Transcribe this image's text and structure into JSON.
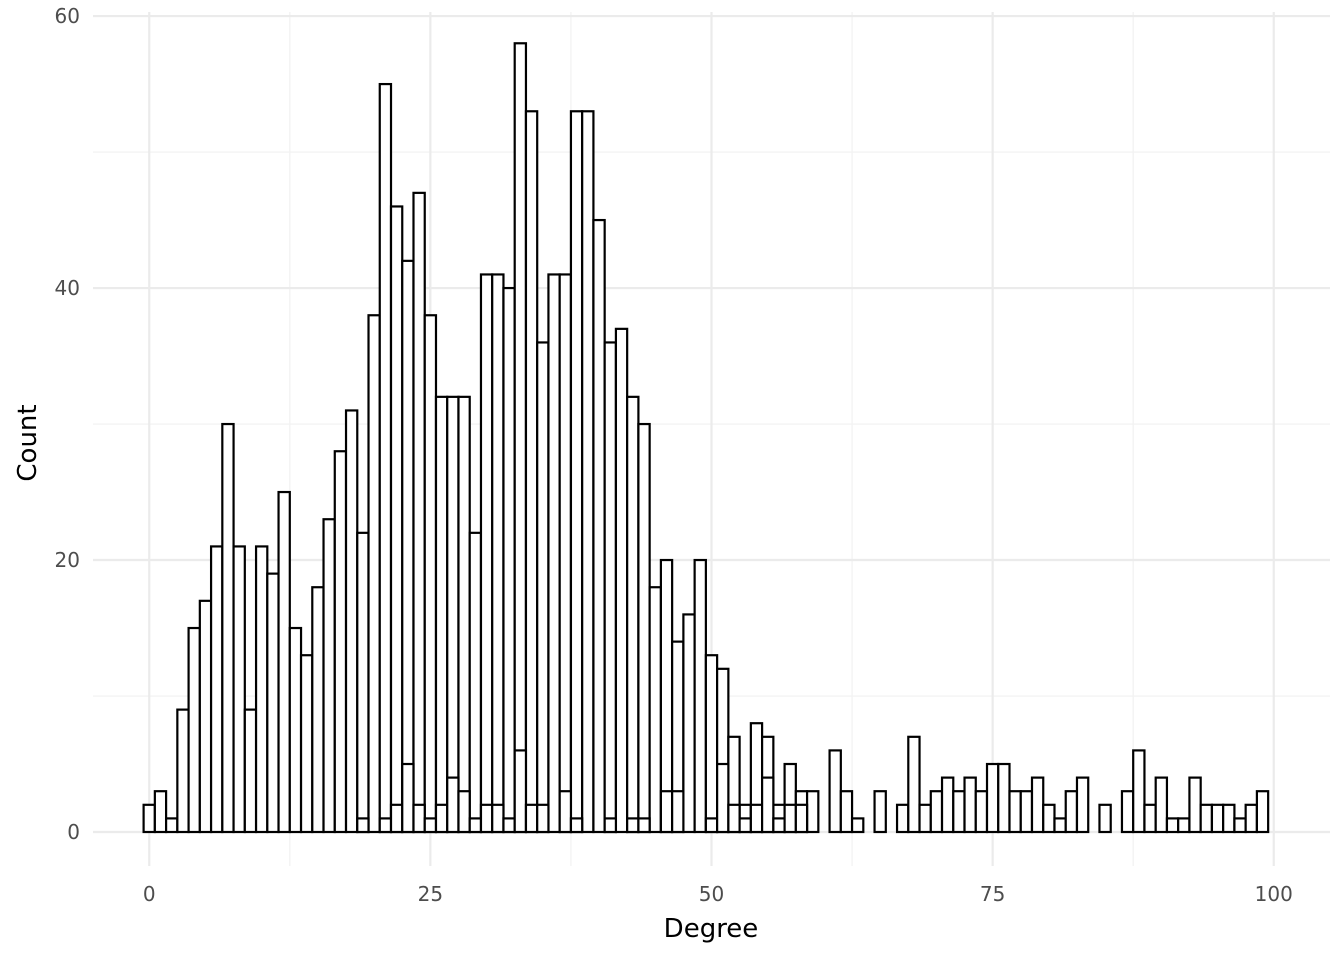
{
  "chart_data": {
    "type": "bar",
    "title": "",
    "xlabel": "Degree",
    "ylabel": "Count",
    "xlim": [
      -5,
      105
    ],
    "ylim": [
      -2.5,
      60.3
    ],
    "x_ticks": [
      0,
      25,
      50,
      75,
      100
    ],
    "x_tick_labels": [
      "0",
      "25",
      "50",
      "75",
      "100"
    ],
    "y_ticks": [
      0,
      20,
      40,
      60
    ],
    "y_tick_labels": [
      "0",
      "20",
      "40",
      "60"
    ],
    "grid": true,
    "bin_width": 1,
    "series": [
      {
        "values": [
          [
            0,
            2
          ],
          [
            1,
            3
          ],
          [
            2,
            1
          ],
          [
            3,
            9
          ],
          [
            4,
            15
          ],
          [
            5,
            17
          ],
          [
            6,
            21
          ],
          [
            7,
            30
          ],
          [
            8,
            21
          ],
          [
            9,
            9
          ],
          [
            10,
            21
          ],
          [
            11,
            19
          ],
          [
            12,
            25
          ],
          [
            13,
            15
          ],
          [
            14,
            13
          ],
          [
            15,
            18
          ],
          [
            16,
            23
          ],
          [
            17,
            28
          ],
          [
            18,
            31
          ],
          [
            19,
            22
          ],
          [
            20,
            38
          ],
          [
            21,
            55
          ],
          [
            22,
            46
          ],
          [
            23,
            42
          ],
          [
            24,
            47
          ],
          [
            25,
            38
          ],
          [
            26,
            32
          ],
          [
            27,
            32
          ],
          [
            28,
            32
          ],
          [
            29,
            22
          ],
          [
            30,
            41
          ],
          [
            31,
            41
          ],
          [
            32,
            40
          ],
          [
            33,
            58
          ],
          [
            34,
            53
          ],
          [
            35,
            36
          ],
          [
            36,
            41
          ],
          [
            37,
            41
          ],
          [
            38,
            53
          ],
          [
            39,
            53
          ],
          [
            40,
            45
          ],
          [
            41,
            36
          ],
          [
            42,
            37
          ],
          [
            43,
            32
          ],
          [
            44,
            30
          ],
          [
            45,
            18
          ],
          [
            46,
            20
          ],
          [
            47,
            14
          ],
          [
            48,
            16
          ],
          [
            49,
            20
          ],
          [
            50,
            13
          ],
          [
            51,
            12
          ],
          [
            52,
            7
          ],
          [
            53,
            2
          ],
          [
            54,
            8
          ],
          [
            55,
            7
          ],
          [
            56,
            2
          ],
          [
            57,
            5
          ],
          [
            58,
            3
          ],
          [
            59,
            3
          ],
          [
            61,
            6
          ],
          [
            62,
            3
          ],
          [
            63,
            1
          ],
          [
            65,
            3
          ],
          [
            67,
            2
          ],
          [
            68,
            7
          ],
          [
            69,
            2
          ],
          [
            70,
            3
          ],
          [
            71,
            4
          ],
          [
            72,
            3
          ],
          [
            73,
            4
          ],
          [
            74,
            3
          ],
          [
            75,
            5
          ],
          [
            76,
            5
          ],
          [
            77,
            3
          ],
          [
            78,
            3
          ],
          [
            79,
            4
          ],
          [
            80,
            2
          ],
          [
            81,
            1
          ],
          [
            82,
            3
          ],
          [
            83,
            4
          ],
          [
            85,
            2
          ],
          [
            87,
            3
          ],
          [
            88,
            6
          ],
          [
            89,
            2
          ],
          [
            90,
            4
          ],
          [
            91,
            1
          ],
          [
            92,
            1
          ],
          [
            93,
            4
          ],
          [
            94,
            2
          ],
          [
            95,
            2
          ],
          [
            96,
            2
          ],
          [
            97,
            1
          ],
          [
            98,
            2
          ],
          [
            99,
            3
          ]
        ]
      },
      {
        "values": [
          [
            19,
            1
          ],
          [
            21,
            1
          ],
          [
            22,
            2
          ],
          [
            23,
            5
          ],
          [
            24,
            2
          ],
          [
            25,
            1
          ],
          [
            26,
            2
          ],
          [
            27,
            4
          ],
          [
            28,
            3
          ],
          [
            29,
            1
          ],
          [
            30,
            2
          ],
          [
            31,
            2
          ],
          [
            32,
            1
          ],
          [
            33,
            6
          ],
          [
            34,
            2
          ],
          [
            35,
            2
          ],
          [
            37,
            3
          ],
          [
            38,
            1
          ],
          [
            41,
            1
          ],
          [
            43,
            1
          ],
          [
            44,
            1
          ],
          [
            46,
            3
          ],
          [
            47,
            3
          ],
          [
            50,
            1
          ],
          [
            51,
            5
          ],
          [
            52,
            2
          ],
          [
            53,
            1
          ],
          [
            54,
            2
          ],
          [
            55,
            4
          ],
          [
            56,
            1
          ],
          [
            57,
            2
          ],
          [
            58,
            2
          ]
        ]
      }
    ]
  }
}
